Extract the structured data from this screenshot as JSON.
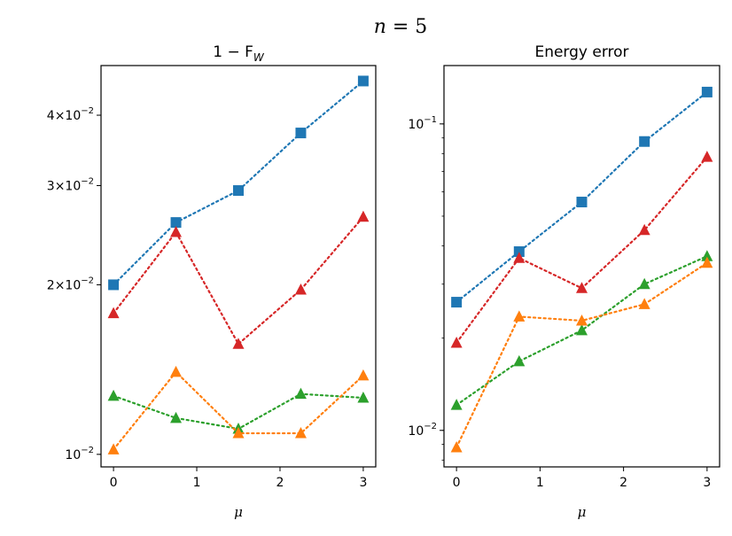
{
  "figure": {
    "suptitle_lhs": "n",
    "suptitle_rhs": " = 5"
  },
  "chart_data": [
    {
      "type": "line",
      "title": "1 − F",
      "title_sub": "W",
      "xlabel": "μ",
      "ylabel": "",
      "y_scale": "log",
      "xlim": [
        -0.15,
        3.15
      ],
      "ylim": [
        0.0095,
        0.049
      ],
      "x_ticks": [
        0,
        1,
        2,
        3
      ],
      "y_ticks": [
        {
          "value": 0.01,
          "mantissa": "",
          "exp": "−2",
          "base": "10"
        },
        {
          "value": 0.02,
          "mantissa": "2×",
          "exp": "−2",
          "base": "10"
        },
        {
          "value": 0.03,
          "mantissa": "3×",
          "exp": "−2",
          "base": "10"
        },
        {
          "value": 0.04,
          "mantissa": "4×",
          "exp": "−2",
          "base": "10"
        }
      ],
      "x": [
        0,
        0.75,
        1.5,
        2.25,
        3
      ],
      "series": [
        {
          "color": "#1f77b4",
          "marker": "square",
          "values": [
            0.02,
            0.0258,
            0.0294,
            0.0372,
            0.046
          ]
        },
        {
          "color": "#d62728",
          "marker": "triangle",
          "values": [
            0.0178,
            0.0248,
            0.0157,
            0.0196,
            0.0264
          ]
        },
        {
          "color": "#2ca02c",
          "marker": "triangle",
          "values": [
            0.0127,
            0.0116,
            0.0111,
            0.0128,
            0.0126
          ]
        },
        {
          "color": "#ff7f0e",
          "marker": "triangle",
          "values": [
            0.0102,
            0.014,
            0.0109,
            0.0109,
            0.0138
          ]
        }
      ]
    },
    {
      "type": "line",
      "title": "Energy error",
      "xlabel": "μ",
      "ylabel": "",
      "y_scale": "log",
      "xlim": [
        -0.15,
        3.15
      ],
      "ylim": [
        0.0076,
        0.155
      ],
      "x_ticks": [
        0,
        1,
        2,
        3
      ],
      "y_ticks": [
        {
          "value": 0.01,
          "mantissa": "",
          "exp": "−2",
          "base": "10"
        },
        {
          "value": 0.1,
          "mantissa": "",
          "exp": "−1",
          "base": "10"
        }
      ],
      "x": [
        0,
        0.75,
        1.5,
        2.25,
        3
      ],
      "series": [
        {
          "color": "#1f77b4",
          "marker": "square",
          "values": [
            0.0262,
            0.0383,
            0.0556,
            0.0876,
            0.127
          ]
        },
        {
          "color": "#d62728",
          "marker": "triangle",
          "values": [
            0.0193,
            0.0365,
            0.0291,
            0.045,
            0.078
          ]
        },
        {
          "color": "#2ca02c",
          "marker": "triangle",
          "values": [
            0.0121,
            0.0168,
            0.0212,
            0.03,
            0.037
          ]
        },
        {
          "color": "#ff7f0e",
          "marker": "triangle",
          "values": [
            0.0088,
            0.0235,
            0.0228,
            0.0258,
            0.0352
          ]
        }
      ]
    }
  ]
}
